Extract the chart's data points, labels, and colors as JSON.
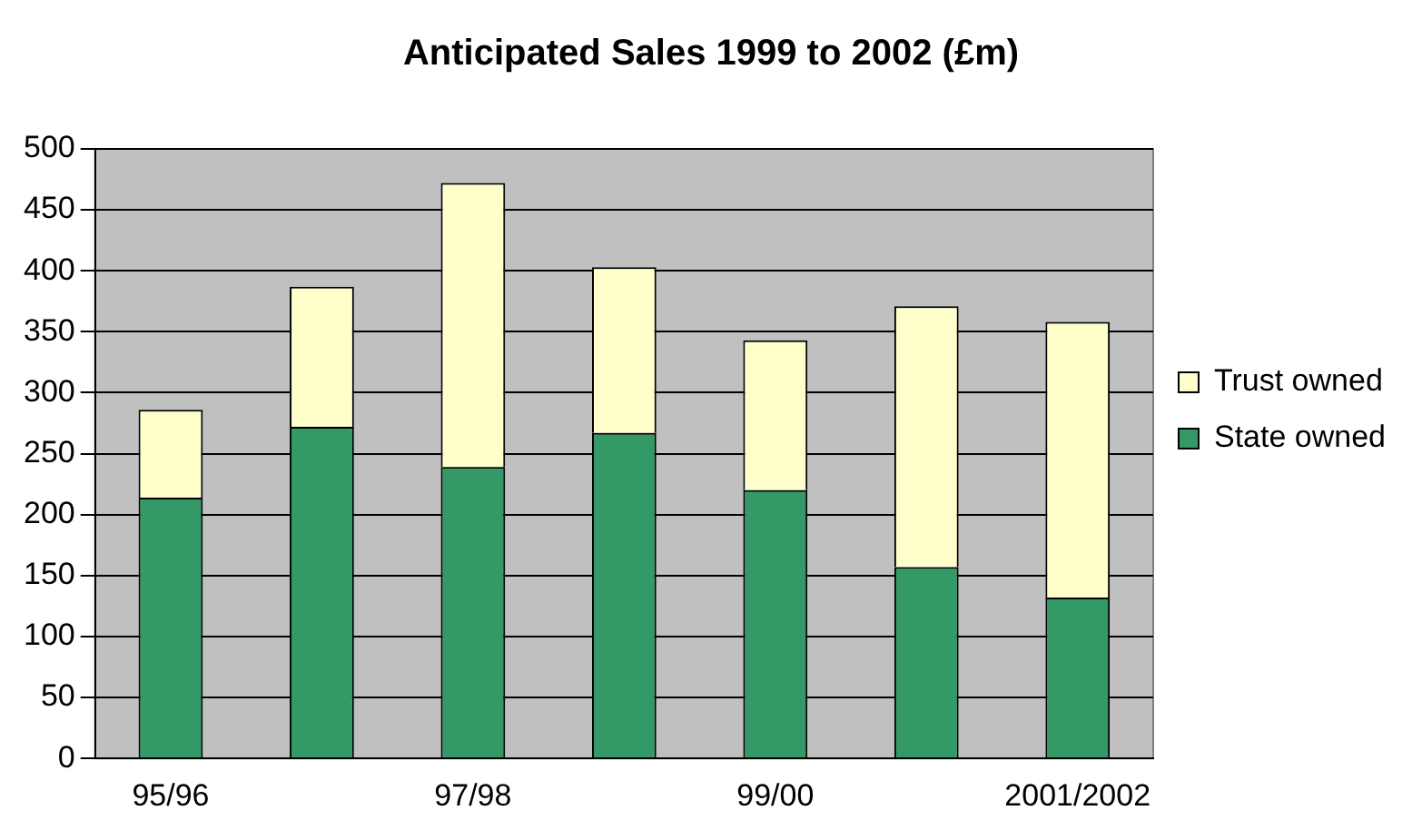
{
  "chart_data": {
    "type": "bar",
    "title": "Anticipated Sales 1999 to 2002 (£m)",
    "stacked": true,
    "categories": [
      "95/96",
      null,
      "97/98",
      null,
      "99/00",
      null,
      "2001/2002"
    ],
    "series": [
      {
        "name": "State owned",
        "color": "#339966",
        "values": [
          214,
          272,
          239,
          267,
          220,
          157,
          132
        ]
      },
      {
        "name": "Trust owned",
        "color": "#ffffcc",
        "values": [
          72,
          115,
          233,
          136,
          123,
          214,
          226
        ]
      }
    ],
    "ylim": [
      0,
      500
    ],
    "yticks": [
      0,
      50,
      100,
      150,
      200,
      250,
      300,
      350,
      400,
      450,
      500
    ],
    "grid": "y",
    "legend": "right"
  }
}
